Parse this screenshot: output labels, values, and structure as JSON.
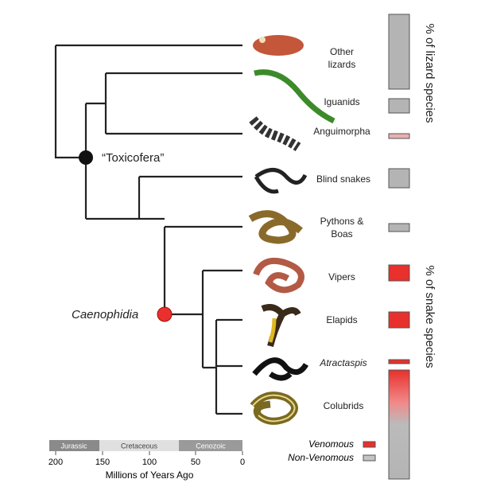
{
  "tree": {
    "nodes": [
      {
        "label": "“Toxicofera”"
      },
      {
        "label": "Caenophidia"
      }
    ],
    "taxa": [
      {
        "label": "Other lizards"
      },
      {
        "label": "Iguanids"
      },
      {
        "label": "Anguimorpha"
      },
      {
        "label": "Blind snakes"
      },
      {
        "label": "Pythons & Boas"
      },
      {
        "label": "Vipers"
      },
      {
        "label": "Elapids"
      },
      {
        "label": "Atractaspis"
      },
      {
        "label": "Colubrids"
      }
    ]
  },
  "side_labels": {
    "lizard": "% of lizard species",
    "snake": "% of snake species"
  },
  "timescale": {
    "periods": [
      "Jurassic",
      "Cretaceous",
      "Cenozoic"
    ],
    "ticks": [
      200,
      150,
      100,
      50,
      0
    ],
    "title": "Millions of Years Ago"
  },
  "legend": [
    {
      "label": "Venomous"
    },
    {
      "label": "Non-Venomous"
    }
  ]
}
